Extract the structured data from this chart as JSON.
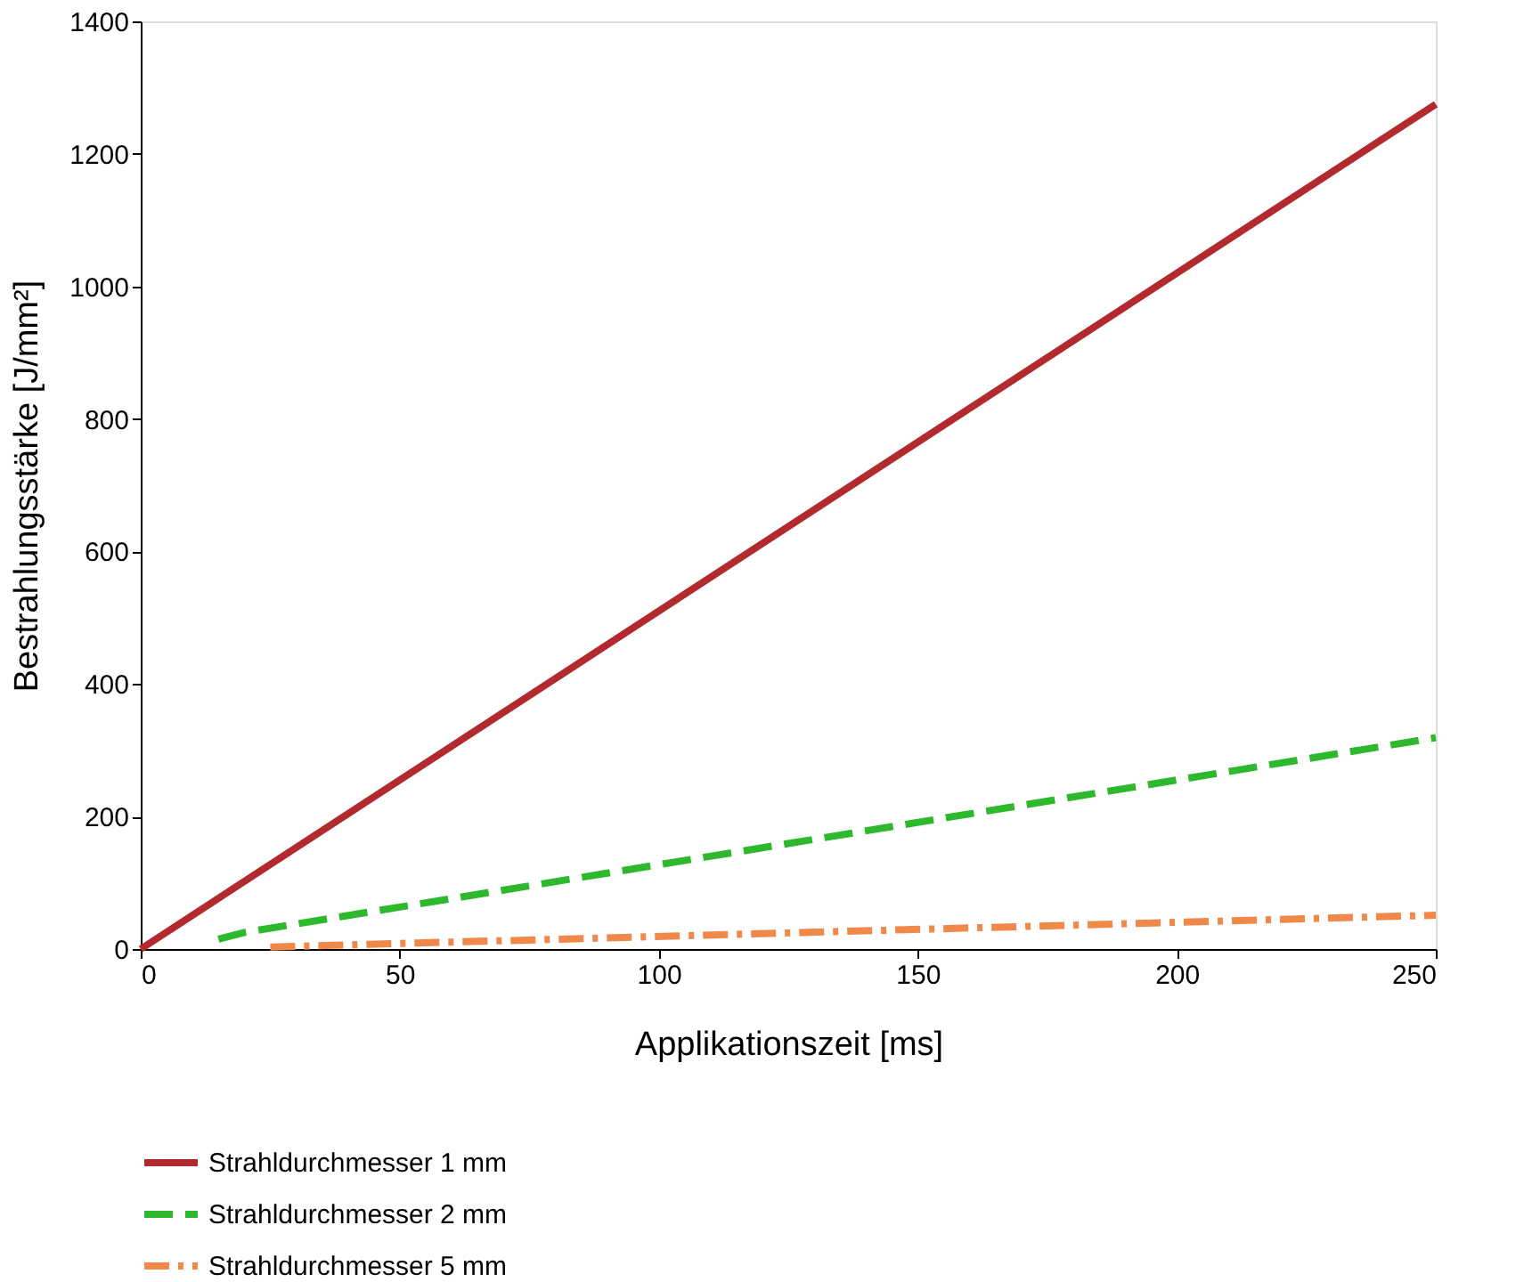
{
  "chart_data": {
    "type": "line",
    "xlabel": "Applikationszeit [ms]",
    "ylabel": "Bestrahlungsstärke [J/mm²]",
    "xlim": [
      0,
      250
    ],
    "xticks": [
      0,
      50,
      100,
      150,
      200,
      250
    ],
    "ylim": [
      0,
      1400
    ],
    "yticks": [
      0,
      200,
      400,
      600,
      800,
      1000,
      1200,
      1400
    ],
    "grid": false,
    "legend": "bottom",
    "marker": "none",
    "series": [
      {
        "name": "Strahldurchmesser 1 mm",
        "color": "#b22a2e",
        "line_style": "solid",
        "x": [
          0,
          250
        ],
        "values": [
          0,
          1275
        ]
      },
      {
        "name": "Strahldurchmesser 2 mm",
        "color": "#2eb82e",
        "line_style": "dashed",
        "x": [
          15,
          20,
          250
        ],
        "values": [
          15,
          25,
          319
        ]
      },
      {
        "name": "Strahldurchmesser 5 mm",
        "color": "#f0884a",
        "line_style": "dashdot",
        "x": [
          25,
          250
        ],
        "values": [
          3,
          51
        ]
      }
    ]
  }
}
